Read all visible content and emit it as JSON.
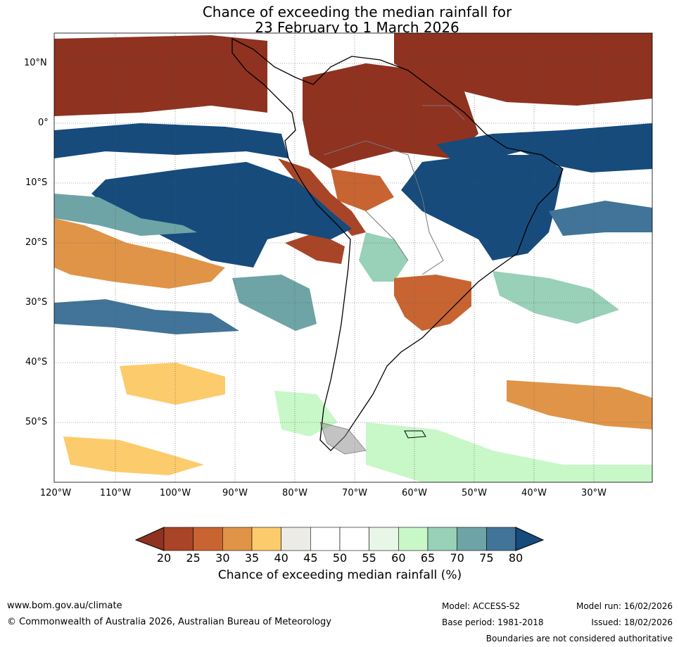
{
  "title": {
    "line1": "Chance of exceeding the median rainfall for",
    "line2": "23 February to 1 March 2026"
  },
  "map": {
    "lat_labels": [
      "10°N",
      "0°",
      "10°S",
      "20°S",
      "30°S",
      "40°S",
      "50°S"
    ],
    "lon_labels": [
      "120°W",
      "110°W",
      "100°W",
      "90°W",
      "80°W",
      "70°W",
      "60°W",
      "50°W",
      "40°W",
      "30°W"
    ]
  },
  "colorbar": {
    "ticks": [
      "20",
      "25",
      "30",
      "35",
      "40",
      "45",
      "50",
      "55",
      "60",
      "65",
      "70",
      "75",
      "80"
    ],
    "colors": [
      "#8f3220",
      "#a84527",
      "#c86432",
      "#e09448",
      "#fccb6b",
      "#ecebe6",
      "#ffffff",
      "#ffffff",
      "#e8f6e8",
      "#c8f7c8",
      "#98d0b8",
      "#6ea4a6",
      "#417498",
      "#164b7c"
    ],
    "label": "Chance of exceeding median rainfall (%)"
  },
  "footer": {
    "website": "www.bom.gov.au/climate",
    "copyright": "© Commonwealth of Australia 2026, Australian Bureau of Meteorology",
    "model": "Model: ACCESS-S2",
    "base_period": "Base period: 1981-2018",
    "model_run": "Model run: 16/02/2026",
    "issued": "Issued: 18/02/2026",
    "disclaimer": "Boundaries are not considered authoritative"
  }
}
